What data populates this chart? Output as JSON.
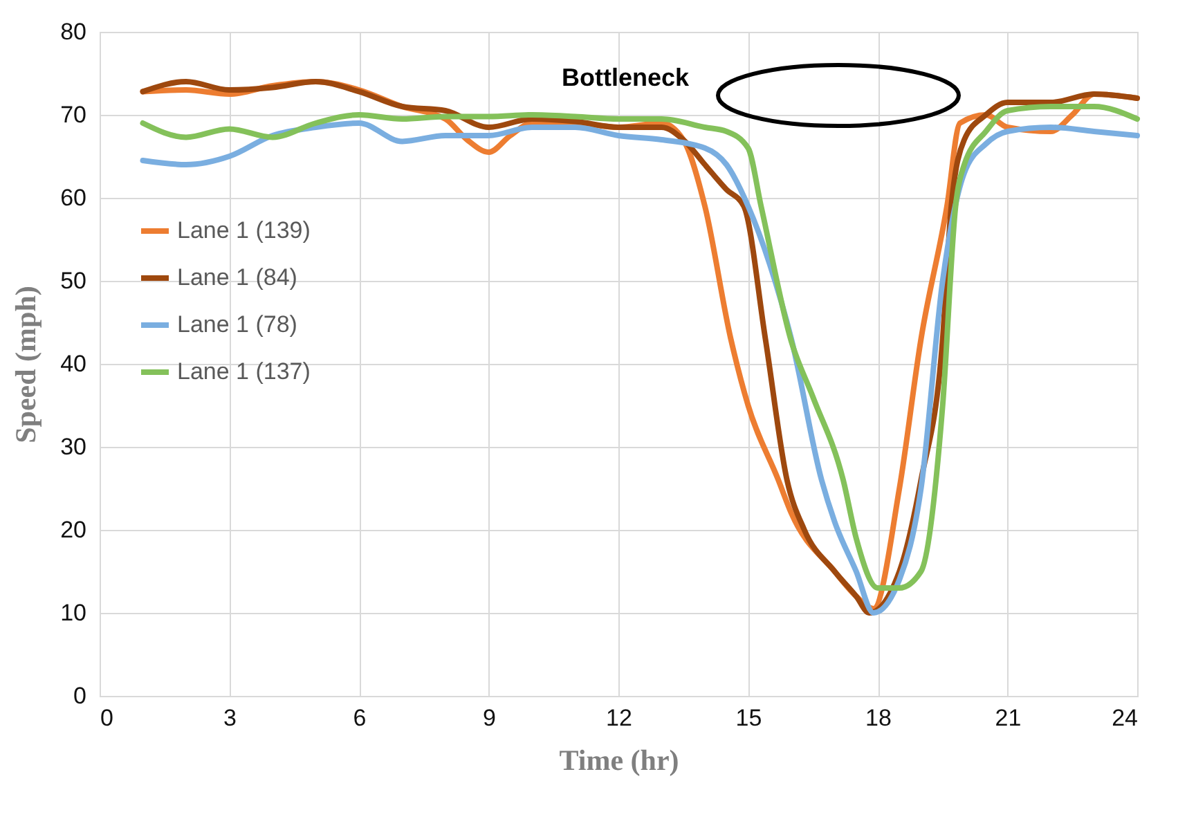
{
  "chart_data": {
    "type": "line",
    "xlabel": "Time (hr)",
    "ylabel": "Speed (mph)",
    "xlim": [
      0,
      24
    ],
    "xticks": [
      0,
      3,
      6,
      9,
      12,
      15,
      18,
      21,
      24
    ],
    "ylim": [
      0,
      80
    ],
    "yticks": [
      0,
      10,
      20,
      30,
      40,
      50,
      60,
      70,
      80
    ],
    "grid": true,
    "legend": "top left",
    "marker": "none",
    "line_style": "solid",
    "annotations": [
      "Bottleneck"
    ],
    "series": [
      {
        "name": "Lane 1 (139)",
        "color": "#ed7d31",
        "x": [
          1,
          2,
          3,
          4,
          5,
          6,
          7,
          8,
          8.5,
          9,
          9.5,
          10,
          11,
          12,
          13,
          13.5,
          14,
          14.6,
          15,
          15.7,
          16,
          17,
          17.5,
          17.9,
          18.5,
          19,
          19.6,
          19.9,
          20.5,
          21,
          22,
          22.5,
          23,
          24
        ],
        "values": [
          72.8,
          73,
          72.5,
          73.5,
          74,
          73,
          71,
          69.5,
          67,
          65.5,
          67.5,
          69,
          69,
          68.5,
          69,
          67,
          59,
          43,
          35,
          26,
          22,
          15,
          12,
          10.5,
          25,
          43,
          59,
          69,
          70,
          68.5,
          68,
          70,
          72.5,
          72
        ]
      },
      {
        "name": "Lane 1 (84)",
        "color": "#9e480e",
        "x": [
          1,
          2,
          3,
          4,
          5,
          6,
          7,
          8,
          9,
          10,
          11,
          12,
          13,
          13.5,
          14,
          14.5,
          14.9,
          15.4,
          15.9,
          16.3,
          17,
          17.5,
          17.8,
          18.5,
          19,
          19.5,
          19.7,
          20,
          20.5,
          21,
          22,
          23,
          24
        ],
        "values": [
          72.8,
          74,
          73,
          73.3,
          74,
          72.8,
          71,
          70.5,
          68.5,
          69.5,
          69.2,
          68.5,
          68.5,
          67,
          64,
          61,
          59,
          43,
          26,
          20,
          15,
          12,
          10,
          15,
          26,
          43,
          59,
          67,
          70,
          71.5,
          71.5,
          72.5,
          72
        ]
      },
      {
        "name": "Lane 1 (78)",
        "color": "#7aaee0",
        "x": [
          1,
          2,
          3,
          4,
          5,
          6,
          7,
          8,
          9,
          10,
          11,
          12,
          13,
          14,
          14.5,
          15,
          15.5,
          16,
          16.7,
          17,
          17.5,
          17.9,
          18.5,
          19,
          19.5,
          20,
          20.5,
          21,
          22,
          23,
          24
        ],
        "values": [
          64.5,
          64,
          65,
          67.5,
          68.5,
          69,
          66.8,
          67.5,
          67.5,
          68.5,
          68.5,
          67.5,
          67,
          66,
          64,
          59,
          52,
          43,
          26,
          21,
          15,
          10,
          14,
          25,
          50,
          63,
          66.5,
          68,
          68.5,
          68,
          67.5
        ]
      },
      {
        "name": "Lane 1 (137)",
        "color": "#84c15a",
        "x": [
          1,
          2,
          3,
          4,
          5,
          6,
          7,
          8,
          9,
          10,
          11,
          12,
          13,
          14,
          14.5,
          15,
          15.3,
          16,
          16.5,
          17.2,
          17.5,
          18,
          18.5,
          19,
          19.5,
          19.8,
          20,
          20.5,
          21,
          22,
          23,
          24
        ],
        "values": [
          69,
          67.3,
          68.3,
          67.3,
          69,
          70,
          69.5,
          69.8,
          69.8,
          70,
          69.8,
          69.5,
          69.5,
          68.5,
          68,
          66,
          59,
          42.7,
          36,
          26,
          19,
          13,
          13,
          15,
          35,
          59,
          64,
          68,
          70.5,
          71,
          71,
          69.5
        ]
      }
    ]
  }
}
